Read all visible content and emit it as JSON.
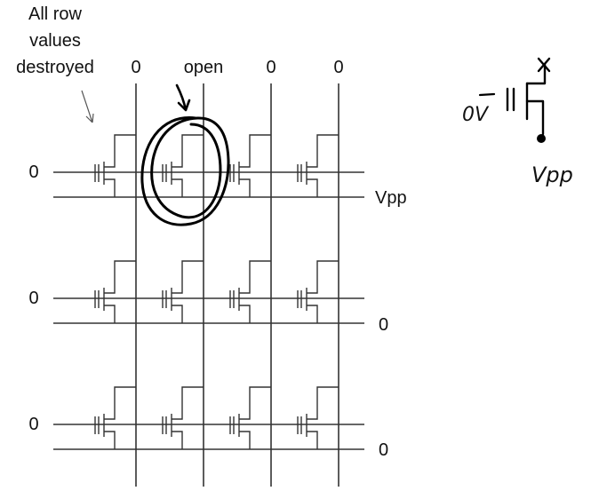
{
  "annotation": {
    "lines": [
      "All row",
      "values",
      "destroyed"
    ]
  },
  "columns": {
    "labels": [
      "0",
      "open",
      "0",
      "0"
    ]
  },
  "rows": {
    "wordline_labels": [
      "0",
      "0",
      "0"
    ],
    "plate_labels": [
      "Vpp",
      "0",
      "0"
    ]
  },
  "handwritten": {
    "left_label": "0V",
    "right_label": "Vpp"
  },
  "colors": {
    "ink": "#111111",
    "wire": "#333333"
  }
}
